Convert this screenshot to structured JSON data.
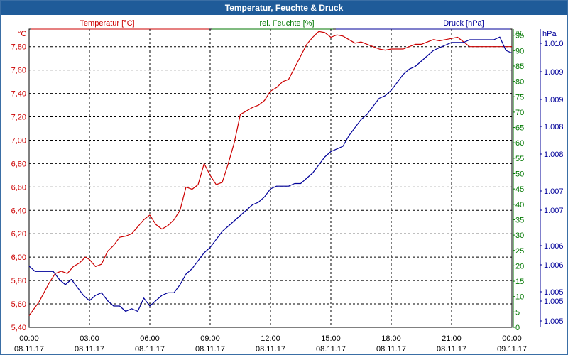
{
  "chart_data": {
    "type": "line",
    "title": "Temperatur, Feuchte & Druck",
    "legend": [
      {
        "label": "Temperatur [°C]",
        "color": "#cc0000"
      },
      {
        "label": "rel. Feuchte [%]",
        "color": "#007700"
      },
      {
        "label": "Druck [hPa]",
        "color": "#000099"
      }
    ],
    "axes": {
      "temperature": {
        "unit": "°C",
        "ticks": [
          "5,40",
          "5,60",
          "5,80",
          "6,00",
          "6,20",
          "6,40",
          "6,60",
          "6,80",
          "7,00",
          "7,20",
          "7,40",
          "7,60",
          "7,80"
        ],
        "ylim": [
          5.4,
          7.95
        ]
      },
      "humidity": {
        "unit": "%",
        "ticks": [
          "0",
          "5",
          "10",
          "15",
          "20",
          "25",
          "30",
          "35",
          "40",
          "45",
          "50",
          "55",
          "60",
          "65",
          "70",
          "75",
          "80",
          "85",
          "90",
          "95"
        ],
        "ylim": [
          0,
          97
        ]
      },
      "pressure": {
        "unit": "hPa",
        "ticks": [
          "1.005",
          "1.005",
          "1.005",
          "1.006",
          "1.006",
          "1.007",
          "1.007",
          "1.008",
          "1.008",
          "1.009",
          "1.009",
          "1.010"
        ],
        "ylim": [
          1004.7,
          1010.3
        ]
      }
    },
    "x_ticks": [
      {
        "time": "00:00",
        "date": "08.11.17"
      },
      {
        "time": "03:00",
        "date": "08.11.17"
      },
      {
        "time": "06:00",
        "date": "08.11.17"
      },
      {
        "time": "09:00",
        "date": "08.11.17"
      },
      {
        "time": "12:00",
        "date": "08.11.17"
      },
      {
        "time": "15:00",
        "date": "08.11.17"
      },
      {
        "time": "18:00",
        "date": "08.11.17"
      },
      {
        "time": "21:00",
        "date": "08.11.17"
      },
      {
        "time": "00:00",
        "date": "09.11.17"
      }
    ],
    "xlim_hours": [
      0,
      24
    ],
    "grid": true,
    "series": [
      {
        "name": "Temperatur [°C]",
        "axis": "temperature",
        "color": "#cc0000",
        "x": [
          0,
          0.5,
          1,
          1.3,
          1.6,
          1.9,
          2.2,
          2.5,
          2.8,
          3.0,
          3.3,
          3.6,
          3.9,
          4.2,
          4.5,
          4.8,
          5.1,
          5.4,
          5.7,
          6.0,
          6.3,
          6.6,
          6.9,
          7.2,
          7.5,
          7.8,
          8.1,
          8.4,
          8.7,
          9.0,
          9.3,
          9.6,
          9.9,
          10.2,
          10.5,
          10.8,
          11.1,
          11.4,
          11.7,
          12.0,
          12.3,
          12.6,
          12.9,
          13.2,
          13.5,
          13.8,
          14.1,
          14.4,
          14.7,
          15.0,
          15.3,
          15.6,
          15.9,
          16.2,
          16.5,
          16.8,
          17.1,
          17.4,
          17.7,
          18.0,
          18.3,
          18.6,
          18.9,
          19.2,
          19.5,
          19.8,
          20.1,
          20.4,
          20.7,
          21.0,
          21.3,
          21.6,
          21.9,
          22.2,
          22.5,
          22.8,
          23.1,
          23.4,
          23.7,
          24.0
        ],
        "y": [
          5.5,
          5.62,
          5.78,
          5.86,
          5.88,
          5.86,
          5.92,
          5.95,
          6.0,
          5.98,
          5.92,
          5.94,
          6.05,
          6.1,
          6.17,
          6.18,
          6.2,
          6.26,
          6.32,
          6.36,
          6.28,
          6.24,
          6.27,
          6.32,
          6.4,
          6.6,
          6.58,
          6.62,
          6.8,
          6.7,
          6.62,
          6.64,
          6.8,
          6.98,
          7.22,
          7.25,
          7.28,
          7.3,
          7.34,
          7.42,
          7.45,
          7.5,
          7.52,
          7.62,
          7.72,
          7.82,
          7.88,
          7.93,
          7.92,
          7.88,
          7.9,
          7.89,
          7.86,
          7.83,
          7.84,
          7.82,
          7.8,
          7.78,
          7.77,
          7.78,
          7.78,
          7.78,
          7.8,
          7.82,
          7.82,
          7.84,
          7.86,
          7.85,
          7.86,
          7.87,
          7.88,
          7.84,
          7.8,
          7.8,
          7.8,
          7.8,
          7.8,
          7.8,
          7.8,
          7.8
        ]
      },
      {
        "name": "Druck [hPa]",
        "axis": "pressure",
        "color": "#000099",
        "x": [
          0,
          0.3,
          0.6,
          0.9,
          1.2,
          1.5,
          1.8,
          2.1,
          2.4,
          2.7,
          3.0,
          3.3,
          3.6,
          3.9,
          4.2,
          4.5,
          4.8,
          5.1,
          5.4,
          5.7,
          6.0,
          6.3,
          6.6,
          6.9,
          7.2,
          7.5,
          7.8,
          8.1,
          8.4,
          8.7,
          9.0,
          9.3,
          9.6,
          9.9,
          10.2,
          10.5,
          10.8,
          11.1,
          11.4,
          11.7,
          12.0,
          12.3,
          12.6,
          12.9,
          13.2,
          13.5,
          13.8,
          14.1,
          14.4,
          14.7,
          15.0,
          15.3,
          15.6,
          15.9,
          16.2,
          16.5,
          16.8,
          17.1,
          17.4,
          17.7,
          18.0,
          18.3,
          18.6,
          18.9,
          19.2,
          19.5,
          19.8,
          20.1,
          20.4,
          20.7,
          21.0,
          21.3,
          21.6,
          21.9,
          22.2,
          22.5,
          22.8,
          23.1,
          23.4,
          23.7,
          24.0
        ],
        "y": [
          1005.85,
          1005.75,
          1005.75,
          1005.75,
          1005.75,
          1005.6,
          1005.5,
          1005.6,
          1005.45,
          1005.3,
          1005.2,
          1005.3,
          1005.35,
          1005.2,
          1005.1,
          1005.1,
          1005.0,
          1005.05,
          1005.0,
          1005.25,
          1005.1,
          1005.2,
          1005.3,
          1005.35,
          1005.35,
          1005.5,
          1005.7,
          1005.8,
          1005.95,
          1006.1,
          1006.2,
          1006.35,
          1006.5,
          1006.6,
          1006.7,
          1006.8,
          1006.9,
          1007.0,
          1007.05,
          1007.15,
          1007.3,
          1007.35,
          1007.35,
          1007.35,
          1007.4,
          1007.4,
          1007.5,
          1007.6,
          1007.75,
          1007.9,
          1008.0,
          1008.05,
          1008.1,
          1008.3,
          1008.45,
          1008.6,
          1008.7,
          1008.85,
          1009.0,
          1009.05,
          1009.15,
          1009.3,
          1009.45,
          1009.55,
          1009.6,
          1009.7,
          1009.8,
          1009.9,
          1009.95,
          1010.0,
          1010.05,
          1010.05,
          1010.05,
          1010.1,
          1010.1,
          1010.1,
          1010.1,
          1010.1,
          1010.15,
          1009.9,
          1009.85
        ]
      }
    ]
  }
}
